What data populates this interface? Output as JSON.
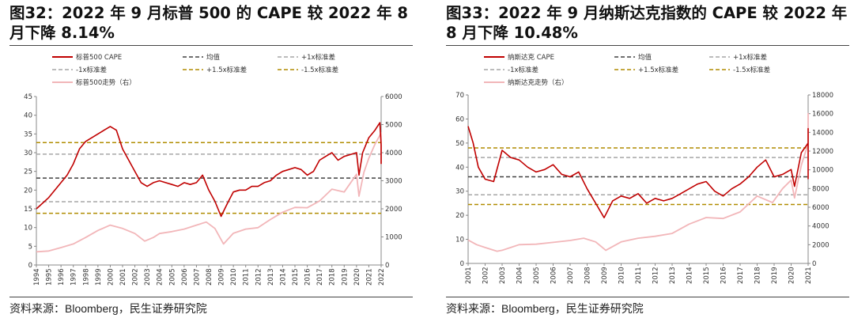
{
  "panels": [
    {
      "title": "图32：2022 年 9 月标普 500 的 CAPE 较 2022 年 8 月下降 8.14%",
      "source": "资料来源：Bloomberg，民生证券研究院"
    },
    {
      "title": "图33：2022 年 9 月纳斯达克指数的 CAPE 较 2022 年 8 月下降 10.48%",
      "source": "资料来源：Bloomberg，民生证券研究院"
    }
  ],
  "colors": {
    "cape": "#c00000",
    "index": "#f2b6b9",
    "mean": "#404040",
    "sd1": "#a6a6a6",
    "sd15": "#b08c00"
  },
  "chart_data": [
    {
      "type": "line",
      "title": "标普500 CAPE",
      "xlabel": "",
      "ylabel": "",
      "x_ticks": [
        "1994",
        "1995",
        "1996",
        "1997",
        "1998",
        "1999",
        "2000",
        "2001",
        "2002",
        "2003",
        "2004",
        "2005",
        "2006",
        "2007",
        "2008",
        "2009",
        "2010",
        "2011",
        "2012",
        "2013",
        "2014",
        "2015",
        "2016",
        "2017",
        "2018",
        "2019",
        "2020",
        "2021",
        "2022"
      ],
      "ylim": [
        0,
        45
      ],
      "y_ticks": [
        "0",
        "5",
        "10",
        "15",
        "20",
        "25",
        "30",
        "35",
        "40",
        "45"
      ],
      "y2lim": [
        0,
        6000
      ],
      "y2_ticks": [
        "0",
        "1000",
        "2000",
        "3000",
        "4000",
        "5000",
        "6000"
      ],
      "legend": [
        "标普500 CAPE",
        "均值",
        "+1x标准差",
        "-1x标准差",
        "+1.5x标准差",
        "-1.5x标准差",
        "标普500走势（右）"
      ],
      "reference_lines": {
        "mean": 23.2,
        "plus_1sd": 29.6,
        "minus_1sd": 16.9,
        "plus_15sd": 32.7,
        "minus_15sd": 13.8
      },
      "series": [
        {
          "name": "标普500 CAPE",
          "axis": "left",
          "x": [
            1994.0,
            1995.0,
            1995.5,
            1996.0,
            1996.5,
            1997.0,
            1997.5,
            1998.0,
            1998.5,
            1999.0,
            1999.5,
            2000.0,
            2000.5,
            2001.0,
            2001.5,
            2002.0,
            2002.5,
            2003.0,
            2003.5,
            2004.0,
            2004.5,
            2005.0,
            2005.5,
            2006.0,
            2006.5,
            2007.0,
            2007.5,
            2008.0,
            2008.5,
            2009.0,
            2009.3,
            2009.6,
            2010.0,
            2010.5,
            2011.0,
            2011.5,
            2012.0,
            2012.5,
            2013.0,
            2013.5,
            2014.0,
            2014.5,
            2015.0,
            2015.5,
            2016.0,
            2016.5,
            2017.0,
            2017.5,
            2018.0,
            2018.5,
            2019.0,
            2019.5,
            2020.0,
            2020.2,
            2020.5,
            2021.0,
            2021.5,
            2021.9,
            2022.2,
            2022.5,
            2022.7
          ],
          "values": [
            15,
            18,
            20,
            22,
            24,
            27,
            31,
            33,
            34,
            35,
            36,
            37,
            36,
            31,
            28,
            25,
            22,
            21,
            22,
            22.5,
            22,
            21.5,
            21,
            22,
            21.5,
            22,
            24,
            20,
            17,
            13,
            15,
            17,
            19.5,
            20,
            20,
            21,
            21,
            22,
            22.5,
            24,
            25,
            25.5,
            26,
            25.5,
            24,
            25,
            28,
            29,
            30,
            28,
            29,
            29.5,
            30,
            24,
            30,
            34,
            36,
            38,
            32,
            29,
            27
          ]
        },
        {
          "name": "标普500走势（右）",
          "axis": "right",
          "x": [
            1994,
            1995,
            1996,
            1997,
            1998,
            1999,
            2000,
            2001,
            2002,
            2002.8,
            2003.5,
            2004,
            2005,
            2006,
            2007,
            2007.8,
            2008.5,
            2009.2,
            2010,
            2011,
            2012,
            2013,
            2014,
            2015,
            2016,
            2017,
            2018,
            2019,
            2020,
            2020.2,
            2020.6,
            2021,
            2021.5,
            2022,
            2022.5,
            2022.7
          ],
          "values": [
            470,
            500,
            620,
            750,
            980,
            1230,
            1420,
            1300,
            1120,
            850,
            980,
            1120,
            1190,
            1280,
            1420,
            1530,
            1300,
            750,
            1130,
            1280,
            1330,
            1620,
            1880,
            2050,
            2040,
            2280,
            2700,
            2600,
            3230,
            2450,
            3300,
            3800,
            4300,
            4700,
            3900,
            3600
          ]
        }
      ]
    },
    {
      "type": "line",
      "title": "纳斯达克 CAPE",
      "xlabel": "",
      "ylabel": "",
      "x_ticks": [
        "2001",
        "2002",
        "2003",
        "2004",
        "2005",
        "2006",
        "2007",
        "2008",
        "2009",
        "2010",
        "2011",
        "2012",
        "2013",
        "2014",
        "2015",
        "2016",
        "2017",
        "2018",
        "2019",
        "2020",
        "2021"
      ],
      "ylim": [
        0,
        70
      ],
      "y_ticks": [
        "0",
        "10",
        "20",
        "30",
        "40",
        "50",
        "60",
        "70"
      ],
      "y2lim": [
        0,
        18000
      ],
      "y2_ticks": [
        "0",
        "2000",
        "4000",
        "6000",
        "8000",
        "10000",
        "12000",
        "14000",
        "16000",
        "18000"
      ],
      "legend": [
        "纳斯达克 CAPE",
        "均值",
        "+1x标准差",
        "-1x标准差",
        "+1.5x标准差",
        "-1.5x标准差",
        "纳斯达克走势（右）"
      ],
      "reference_lines": {
        "mean": 36.0,
        "plus_1sd": 44.0,
        "minus_1sd": 28.5,
        "plus_15sd": 48.0,
        "minus_15sd": 24.5
      },
      "series": [
        {
          "name": "纳斯达克 CAPE",
          "axis": "left",
          "x": [
            2001.0,
            2001.3,
            2001.6,
            2002.0,
            2002.5,
            2003.0,
            2003.5,
            2004.0,
            2004.5,
            2005.0,
            2005.5,
            2006.0,
            2006.5,
            2007.0,
            2007.5,
            2008.0,
            2008.5,
            2009.0,
            2009.5,
            2010.0,
            2010.5,
            2011.0,
            2011.5,
            2012.0,
            2012.5,
            2013.0,
            2013.5,
            2014.0,
            2014.5,
            2015.0,
            2015.5,
            2016.0,
            2016.5,
            2017.0,
            2017.5,
            2018.0,
            2018.5,
            2019.0,
            2019.5,
            2020.0,
            2020.2,
            2020.6,
            2021.0,
            2021.4,
            2021.8,
            2022.2,
            2022.6
          ],
          "values": [
            57,
            50,
            40,
            35,
            34,
            47,
            44,
            43,
            40,
            38,
            39,
            41,
            37,
            36,
            38,
            31,
            25,
            19,
            26,
            28,
            27,
            29,
            25,
            27,
            26,
            27,
            29,
            31,
            33,
            34,
            30,
            28,
            31,
            33,
            36,
            40,
            43,
            36,
            37,
            39,
            32,
            46,
            50,
            52,
            56,
            44,
            35
          ]
        },
        {
          "name": "纳斯达克走势（右）",
          "axis": "right",
          "x": [
            2001,
            2001.5,
            2002,
            2002.7,
            2003,
            2003.5,
            2004,
            2005,
            2006,
            2007,
            2007.8,
            2008.5,
            2009.1,
            2010,
            2011,
            2012,
            2013,
            2014,
            2015,
            2016,
            2017,
            2018,
            2018.9,
            2019.5,
            2020.0,
            2020.2,
            2020.6,
            2021,
            2021.5,
            2021.9,
            2022.3,
            2022.6
          ],
          "values": [
            2500,
            2000,
            1700,
            1300,
            1400,
            1700,
            2000,
            2050,
            2250,
            2450,
            2700,
            2300,
            1400,
            2300,
            2700,
            2900,
            3200,
            4200,
            4900,
            4800,
            5500,
            7200,
            6500,
            8000,
            8900,
            7000,
            10500,
            12800,
            14500,
            16000,
            12500,
            11000
          ]
        }
      ]
    }
  ]
}
